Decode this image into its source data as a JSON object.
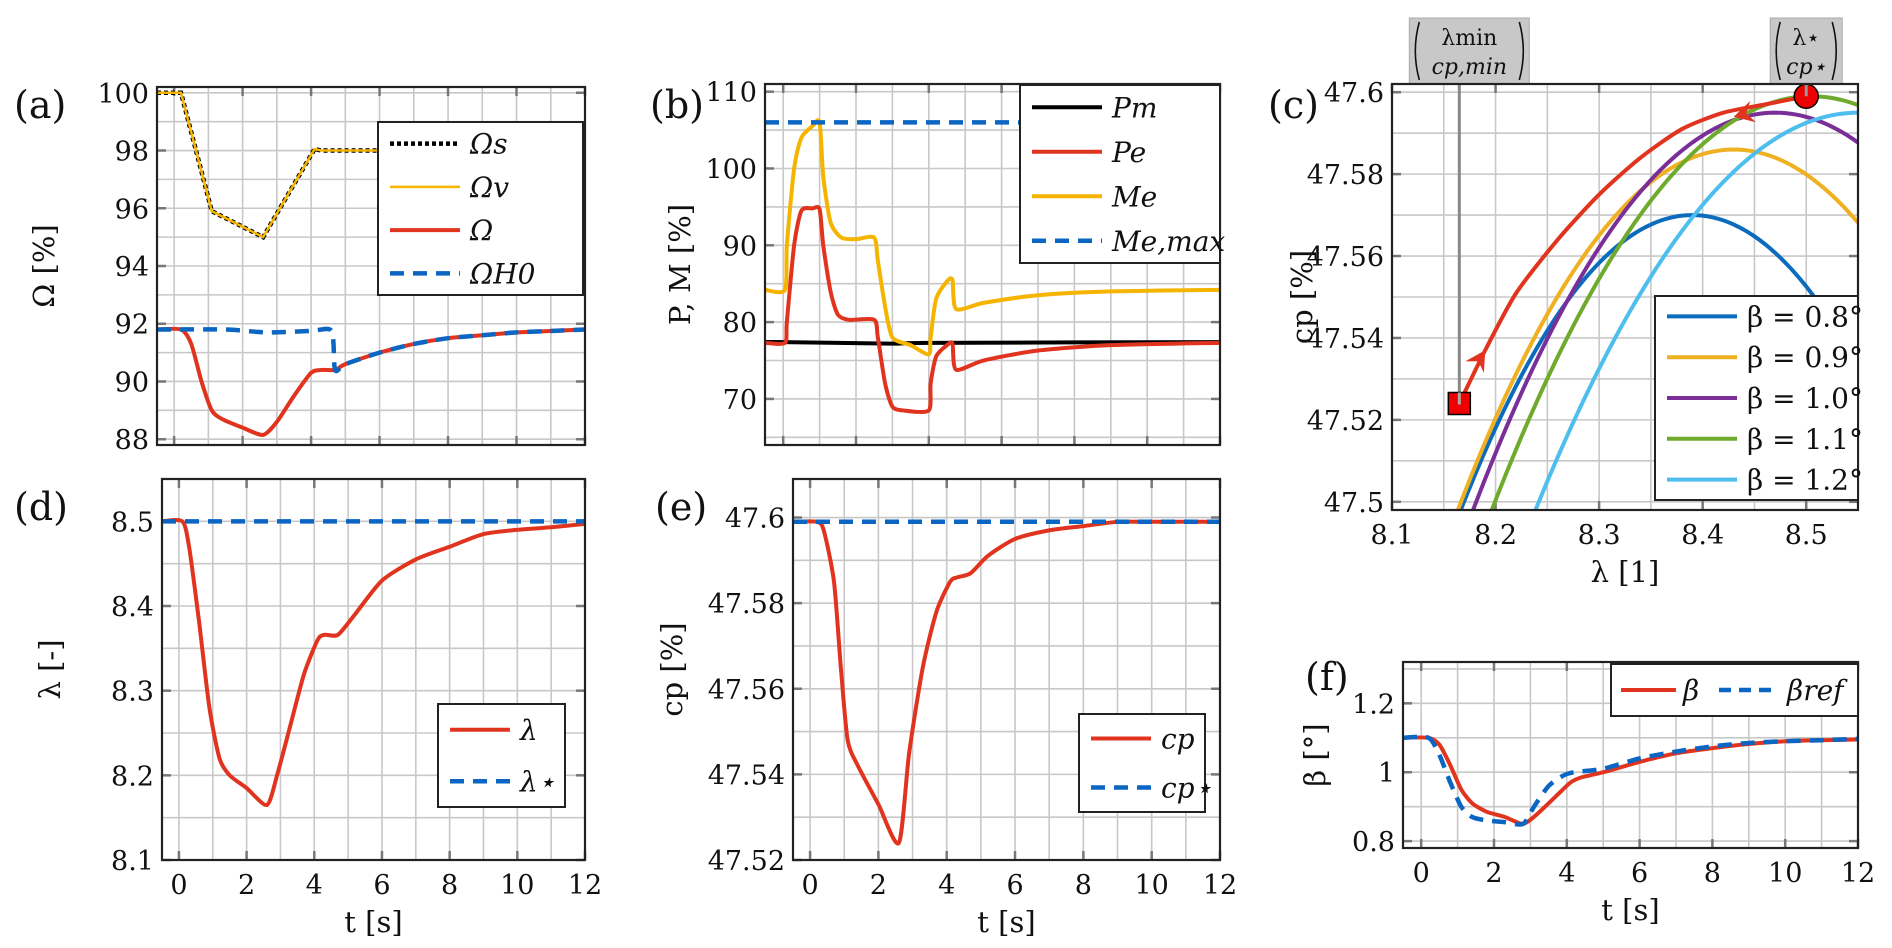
{
  "colors": {
    "red": "#e0341e",
    "blue": "#0a66c2",
    "yellow": "#f5b400",
    "black": "#000000",
    "b08": "#0b6bbd",
    "b09": "#efb021",
    "b10": "#7a2f98",
    "b11": "#6faa2d",
    "b12": "#4dbeee"
  },
  "chart_data": [
    {
      "id": "a",
      "panel_label": "(a)",
      "type": "line",
      "xlabel": "",
      "ylabel": "Ω [%]",
      "xlim": [
        -0.5,
        12
      ],
      "ylim": [
        87.8,
        100.2
      ],
      "xticks": [
        0,
        2,
        4,
        6,
        8,
        10,
        12
      ],
      "xtick_labels": [],
      "yticks": [
        88,
        90,
        92,
        94,
        96,
        98,
        100
      ],
      "ytick_labels": [
        "88",
        "90",
        "92",
        "94",
        "96",
        "98",
        "100"
      ],
      "grid": true,
      "legend": "top-right",
      "series": [
        {
          "name": "Ω_s",
          "label": "Ωs",
          "style": "dotted",
          "color": "black",
          "x": [
            -0.5,
            0.2,
            1.1,
            2.6,
            4.1,
            4.3,
            12
          ],
          "y": [
            100,
            100,
            95.9,
            95.0,
            98.05,
            98.0,
            98.0
          ]
        },
        {
          "name": "Ω_v",
          "label": "Ωv",
          "style": "solid-thin",
          "color": "yellow",
          "x": [
            -0.5,
            0.2,
            1.1,
            2.6,
            4.1,
            4.3,
            12
          ],
          "y": [
            100,
            100,
            95.9,
            95.0,
            98.05,
            98.0,
            98.0
          ]
        },
        {
          "name": "Ω",
          "label": "Ω",
          "style": "solid",
          "color": "red",
          "x": [
            -0.5,
            0.2,
            0.5,
            0.8,
            1.1,
            1.4,
            2.0,
            2.6,
            3.0,
            3.5,
            4.0,
            4.3,
            4.7,
            5.0,
            6,
            7,
            8,
            9,
            10,
            11,
            12
          ],
          "y": [
            91.8,
            91.8,
            91.3,
            90.0,
            89.0,
            88.7,
            88.4,
            88.15,
            88.6,
            89.5,
            90.3,
            90.4,
            90.4,
            90.6,
            91.0,
            91.3,
            91.5,
            91.6,
            91.7,
            91.75,
            91.8
          ]
        },
        {
          "name": "Ω_H0",
          "label": "ΩH0",
          "style": "dashed",
          "color": "blue",
          "x": [
            -0.5,
            1.5,
            2.7,
            4.0,
            4.6,
            4.7,
            5.0,
            6,
            7,
            8,
            9,
            10,
            11,
            12
          ],
          "y": [
            91.8,
            91.8,
            91.7,
            91.75,
            91.75,
            90.4,
            90.6,
            91.0,
            91.3,
            91.5,
            91.6,
            91.7,
            91.75,
            91.8
          ]
        }
      ]
    },
    {
      "id": "b",
      "panel_label": "(b)",
      "type": "line",
      "xlabel": "",
      "ylabel": "P, M [%]",
      "xlim": [
        -0.5,
        12
      ],
      "ylim": [
        64,
        111
      ],
      "xticks": [
        0,
        2,
        4,
        6,
        8,
        10,
        12
      ],
      "xtick_labels": [],
      "yticks": [
        70,
        80,
        90,
        100,
        110
      ],
      "ytick_labels": [
        "70",
        "80",
        "90",
        "100",
        "110"
      ],
      "grid": true,
      "legend": "top-right",
      "series": [
        {
          "name": "P_m",
          "label": "Pm",
          "style": "solid",
          "color": "black",
          "x": [
            -0.5,
            0,
            3,
            4,
            12
          ],
          "y": [
            77.4,
            77.4,
            77.2,
            77.3,
            77.4
          ]
        },
        {
          "name": "P_e",
          "label": "Pe",
          "style": "solid",
          "color": "red",
          "x": [
            -0.5,
            0.05,
            0.1,
            0.3,
            0.5,
            0.8,
            1.0,
            1.1,
            1.3,
            1.5,
            1.8,
            2.5,
            2.6,
            2.8,
            3.0,
            3.3,
            4.0,
            4.05,
            4.2,
            4.5,
            4.65,
            4.75,
            5.5,
            7,
            9,
            12
          ],
          "y": [
            77.3,
            77.3,
            80,
            90,
            94.5,
            94.8,
            94.7,
            90,
            84,
            81,
            80.3,
            80.3,
            78,
            72,
            69,
            68.5,
            68.5,
            72,
            75.5,
            77,
            77.2,
            73.8,
            75,
            76.3,
            77.0,
            77.3
          ]
        },
        {
          "name": "M_e",
          "label": "Me",
          "style": "solid",
          "color": "yellow",
          "x": [
            -0.5,
            0.05,
            0.1,
            0.3,
            0.5,
            0.8,
            1.0,
            1.1,
            1.3,
            1.6,
            2.0,
            2.5,
            2.6,
            2.8,
            3.0,
            3.5,
            4.0,
            4.05,
            4.2,
            4.5,
            4.65,
            4.75,
            5.5,
            7,
            9,
            12
          ],
          "y": [
            84.2,
            84.2,
            90,
            100,
            104,
            105.5,
            106,
            99,
            93,
            91,
            90.8,
            91,
            88,
            82,
            78,
            77,
            75.8,
            78,
            83,
            85.3,
            85.5,
            81.7,
            82.5,
            83.5,
            84.0,
            84.2
          ]
        },
        {
          "name": "M_e,max",
          "label": "Me,max",
          "style": "dashed",
          "color": "blue",
          "x": [
            -0.5,
            12
          ],
          "y": [
            106,
            106
          ]
        }
      ]
    },
    {
      "id": "c",
      "panel_label": "(c)",
      "type": "line",
      "xlabel": "λ [1]",
      "ylabel": "cp [%]",
      "xlim": [
        8.1,
        8.55
      ],
      "ylim": [
        47.498,
        47.602
      ],
      "xticks": [
        8.1,
        8.2,
        8.3,
        8.4,
        8.5
      ],
      "xtick_labels": [
        "8.1",
        "8.2",
        "8.3",
        "8.4",
        "8.5"
      ],
      "yticks": [
        47.5,
        47.52,
        47.54,
        47.56,
        47.58,
        47.6
      ],
      "ytick_labels": [
        "47.5",
        "47.52",
        "47.54",
        "47.56",
        "47.58",
        "47.6"
      ],
      "grid": true,
      "legend": "bottom-right",
      "series": [
        {
          "name": "β = 0.8°",
          "label": "β = 0.8°",
          "color": "b08",
          "peak": [
            8.39,
            47.57
          ],
          "curv": 1.44
        },
        {
          "name": "β = 0.9°",
          "label": "β = 0.9°",
          "color": "b09",
          "peak": [
            8.43,
            47.586
          ],
          "curv": 1.24
        },
        {
          "name": "β = 1.0°",
          "label": "β = 1.0°",
          "color": "b10",
          "peak": [
            8.47,
            47.595
          ],
          "curv": 1.14
        },
        {
          "name": "β = 1.1°",
          "label": "β = 1.1°",
          "color": "b11",
          "peak": [
            8.505,
            47.599
          ],
          "curv": 1.06
        },
        {
          "name": "β = 1.2°",
          "label": "β = 1.2°",
          "color": "b12",
          "peak": [
            8.55,
            47.595
          ],
          "curv": 1.0
        }
      ],
      "trajectory": {
        "color": "red",
        "x": [
          8.165,
          8.19,
          8.22,
          8.26,
          8.3,
          8.34,
          8.38,
          8.42,
          8.46,
          8.5
        ],
        "y": [
          47.524,
          47.537,
          47.551,
          47.564,
          47.575,
          47.584,
          47.591,
          47.595,
          47.597,
          47.599
        ]
      },
      "markers": [
        {
          "name": "min-point",
          "shape": "square",
          "x": 8.165,
          "y": 47.524
        },
        {
          "name": "optimal-point",
          "shape": "circle",
          "x": 8.5,
          "y": 47.599
        }
      ],
      "annotations": [
        {
          "name": "lambda-min-annotation",
          "line1": "λmin",
          "line2": "cp,min",
          "x": 8.165
        },
        {
          "name": "lambda-star-annotation",
          "line1": "λ⋆",
          "line2": "cp⋆",
          "x": 8.5
        }
      ]
    },
    {
      "id": "d",
      "panel_label": "(d)",
      "type": "line",
      "xlabel": "t [s]",
      "ylabel": "λ [-]",
      "xlim": [
        -0.5,
        12
      ],
      "ylim": [
        8.1,
        8.55
      ],
      "xticks": [
        0,
        2,
        4,
        6,
        8,
        10,
        12
      ],
      "xtick_labels": [
        "0",
        "2",
        "4",
        "6",
        "8",
        "10",
        "12"
      ],
      "yticks": [
        8.1,
        8.2,
        8.3,
        8.4,
        8.5
      ],
      "ytick_labels": [
        "8.1",
        "8.2",
        "8.3",
        "8.4",
        "8.5"
      ],
      "grid": true,
      "legend": "bottom-right",
      "series": [
        {
          "name": "λ",
          "label": "λ",
          "style": "solid",
          "color": "red",
          "x": [
            -0.5,
            0.1,
            0.3,
            0.6,
            0.9,
            1.2,
            1.5,
            2.0,
            2.6,
            2.9,
            3.3,
            3.7,
            4.1,
            4.3,
            4.7,
            5.2,
            6,
            7,
            8,
            9,
            10,
            11,
            12
          ],
          "y": [
            8.5,
            8.5,
            8.47,
            8.38,
            8.28,
            8.22,
            8.2,
            8.185,
            8.165,
            8.2,
            8.26,
            8.32,
            8.36,
            8.366,
            8.366,
            8.39,
            8.43,
            8.455,
            8.47,
            8.485,
            8.49,
            8.493,
            8.497
          ]
        },
        {
          "name": "λ⋆",
          "label": "λ⋆",
          "style": "dashed",
          "color": "blue",
          "x": [
            -0.5,
            12
          ],
          "y": [
            8.5,
            8.5
          ]
        }
      ]
    },
    {
      "id": "e",
      "panel_label": "(e)",
      "type": "line",
      "xlabel": "t [s]",
      "ylabel": "cp [%]",
      "xlim": [
        -0.5,
        12
      ],
      "ylim": [
        47.52,
        47.609
      ],
      "xticks": [
        0,
        2,
        4,
        6,
        8,
        10,
        12
      ],
      "xtick_labels": [
        "0",
        "2",
        "4",
        "6",
        "8",
        "10",
        "12"
      ],
      "yticks": [
        47.52,
        47.54,
        47.56,
        47.58,
        47.6
      ],
      "ytick_labels": [
        "47.52",
        "47.54",
        "47.56",
        "47.58",
        "47.6"
      ],
      "grid": true,
      "legend": "bottom-right",
      "series": [
        {
          "name": "c_p",
          "label": "cp",
          "style": "solid",
          "color": "red",
          "x": [
            -0.5,
            0.2,
            0.4,
            0.7,
            0.9,
            1.1,
            1.4,
            2.0,
            2.6,
            2.9,
            3.3,
            3.7,
            4.1,
            4.3,
            4.7,
            5.2,
            6,
            7,
            8,
            9,
            10,
            12
          ],
          "y": [
            47.599,
            47.599,
            47.597,
            47.585,
            47.565,
            47.548,
            47.542,
            47.533,
            47.524,
            47.545,
            47.565,
            47.578,
            47.585,
            47.586,
            47.587,
            47.591,
            47.595,
            47.597,
            47.598,
            47.599,
            47.599,
            47.599
          ]
        },
        {
          "name": "c_p⋆",
          "label": "cp⋆",
          "style": "dashed",
          "color": "blue",
          "x": [
            -0.5,
            12
          ],
          "y": [
            47.599,
            47.599
          ]
        }
      ]
    },
    {
      "id": "f",
      "panel_label": "(f)",
      "type": "line",
      "xlabel": "t [s]",
      "ylabel": "β [°]",
      "xlim": [
        -0.5,
        12
      ],
      "ylim": [
        0.78,
        1.32
      ],
      "xticks": [
        0,
        2,
        4,
        6,
        8,
        10,
        12
      ],
      "xtick_labels": [
        "0",
        "2",
        "4",
        "6",
        "8",
        "10",
        "12"
      ],
      "yticks": [
        0.8,
        1,
        1.2
      ],
      "ytick_labels": [
        "0.8",
        "1",
        "1.2"
      ],
      "grid": true,
      "legend": "top-right",
      "series": [
        {
          "name": "β",
          "label": "β",
          "style": "solid",
          "color": "red",
          "x": [
            -0.5,
            0.2,
            0.5,
            0.8,
            1.1,
            1.4,
            1.8,
            2.3,
            2.8,
            3.2,
            3.7,
            4.1,
            4.4,
            5,
            6,
            7,
            8,
            9,
            10,
            11,
            12
          ],
          "y": [
            1.1,
            1.1,
            1.08,
            1.02,
            0.95,
            0.91,
            0.885,
            0.87,
            0.85,
            0.88,
            0.93,
            0.97,
            0.985,
            1.0,
            1.03,
            1.055,
            1.07,
            1.082,
            1.09,
            1.093,
            1.095
          ]
        },
        {
          "name": "β_ref",
          "label": "βref",
          "style": "dashed",
          "color": "blue",
          "x": [
            -0.5,
            0.2,
            0.5,
            0.8,
            1.1,
            1.4,
            1.8,
            2.3,
            2.8,
            3.1,
            3.5,
            3.9,
            4.2,
            5,
            6,
            7,
            8,
            9,
            10,
            11,
            12
          ],
          "y": [
            1.1,
            1.1,
            1.05,
            0.97,
            0.9,
            0.87,
            0.86,
            0.855,
            0.85,
            0.9,
            0.96,
            0.99,
            1.0,
            1.01,
            1.04,
            1.06,
            1.075,
            1.085,
            1.09,
            1.093,
            1.097
          ]
        }
      ]
    }
  ]
}
